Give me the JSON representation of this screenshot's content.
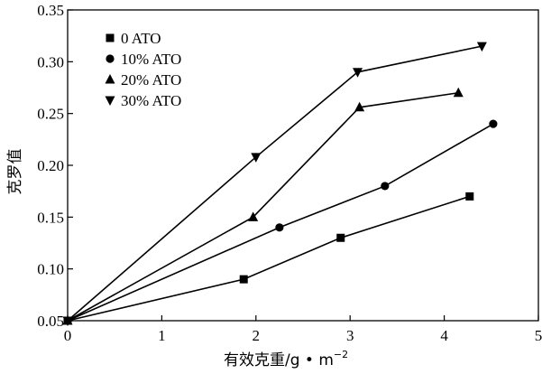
{
  "chart_data": {
    "type": "line",
    "title": "",
    "xlabel": "有效克重/g • m",
    "xlabel_exponent": "−2",
    "ylabel": "克罗值",
    "xlim": [
      0,
      5
    ],
    "ylim": [
      0.05,
      0.35
    ],
    "xticks": [
      0,
      1,
      2,
      3,
      4,
      5
    ],
    "xtick_labels": [
      "0",
      "1",
      "2",
      "3",
      "4",
      "5"
    ],
    "yticks": [
      0.05,
      0.1,
      0.15,
      0.2,
      0.25,
      0.3,
      0.35
    ],
    "ytick_labels": [
      "0.05",
      "0.10",
      "0.15",
      "0.20",
      "0.25",
      "0.30",
      "0.35"
    ],
    "grid": false,
    "legend_position": "top-left",
    "series": [
      {
        "name": "0 ATO",
        "marker": "square",
        "x": [
          0,
          1.87,
          2.9,
          4.27
        ],
        "y": [
          0.05,
          0.09,
          0.13,
          0.17
        ]
      },
      {
        "name": "10% ATO",
        "marker": "circle",
        "x": [
          0,
          2.25,
          3.37,
          4.52
        ],
        "y": [
          0.05,
          0.14,
          0.18,
          0.24
        ]
      },
      {
        "name": "20% ATO",
        "marker": "triangle-up",
        "x": [
          0,
          1.97,
          3.1,
          4.15
        ],
        "y": [
          0.05,
          0.15,
          0.256,
          0.27
        ]
      },
      {
        "name": "30% ATO",
        "marker": "triangle-down",
        "x": [
          0,
          2.0,
          3.08,
          4.4
        ],
        "y": [
          0.05,
          0.208,
          0.29,
          0.315
        ]
      }
    ]
  }
}
